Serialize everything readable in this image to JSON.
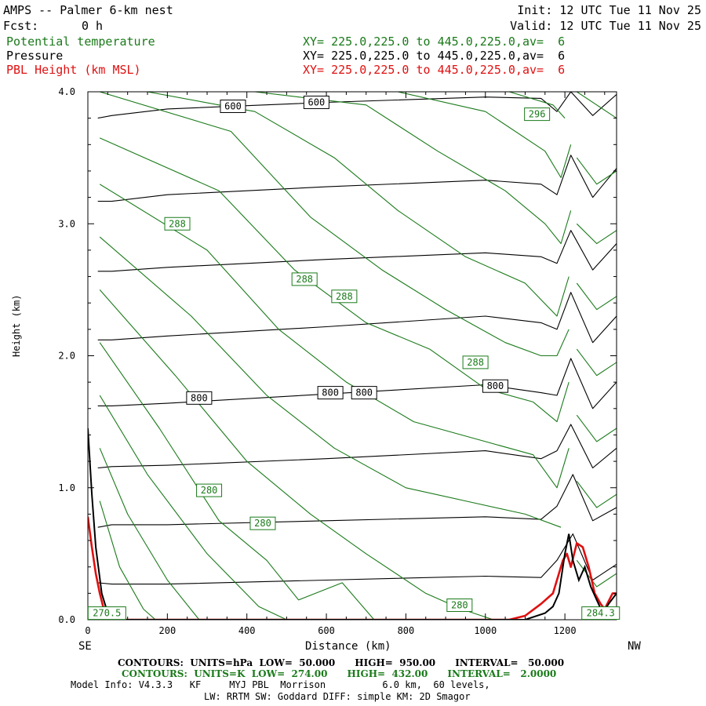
{
  "header": {
    "title": "AMPS -- Palmer 6-km nest",
    "fcst_label": "Fcst:",
    "fcst_value": "0 h",
    "init": "Init: 12 UTC Tue 11 Nov 25",
    "valid": "Valid: 12 UTC Tue 11 Nov 25"
  },
  "fields": [
    {
      "name": "Potential temperature",
      "xy": "XY= 225.0,225.0 to 445.0,225.0,av=  6",
      "color": "#1a7a1a"
    },
    {
      "name": "Pressure",
      "xy": "XY= 225.0,225.0 to 445.0,225.0,av=  6",
      "color": "#000000"
    },
    {
      "name": "PBL Height (km MSL)",
      "xy": "XY= 225.0,225.0 to 445.0,225.0,av=  6",
      "color": "#e01010"
    }
  ],
  "footer": {
    "left_dir": "SE",
    "right_dir": "NW",
    "contours_pressure": "CONTOURS:  UNITS=hPa  LOW=  50.000      HIGH=  950.00      INTERVAL=   50.000",
    "contours_theta": "CONTOURS:  UNITS=K  LOW=  274.00      HIGH=  432.00      INTERVAL=   2.0000",
    "model_info_1": "Model Info: V4.3.3   KF     MYJ PBL  Morrison          6.0 km,  60 levels,",
    "model_info_2": "LW: RRTM SW: Goddard DIFF: simple KM: 2D Smagor"
  },
  "chart_data": {
    "type": "line",
    "xlabel": "Distance (km)",
    "ylabel": "Height (km)",
    "xlim": [
      0,
      1330
    ],
    "ylim": [
      0,
      4
    ],
    "x_ticks": [
      0,
      200,
      400,
      600,
      800,
      1000,
      1200
    ],
    "x_tick_labels": [
      "0",
      "200",
      "400",
      "600",
      "800",
      "1000",
      "1200"
    ],
    "y_ticks": [
      0,
      1,
      2,
      3,
      4
    ],
    "y_tick_labels": [
      "0.0",
      "1.0",
      "2.0",
      "3.0",
      "4.0"
    ],
    "contour_labels": [
      {
        "text": "600",
        "x": 365,
        "y": 3.89,
        "color": "#000000"
      },
      {
        "text": "600",
        "x": 575,
        "y": 3.92,
        "color": "#000000"
      },
      {
        "text": "296",
        "x": 1130,
        "y": 3.83,
        "color": "#1a7a1a"
      },
      {
        "text": "288",
        "x": 225,
        "y": 3.0,
        "color": "#1a7a1a"
      },
      {
        "text": "288",
        "x": 545,
        "y": 2.58,
        "color": "#1a7a1a"
      },
      {
        "text": "288",
        "x": 645,
        "y": 2.45,
        "color": "#1a7a1a"
      },
      {
        "text": "288",
        "x": 975,
        "y": 1.95,
        "color": "#1a7a1a"
      },
      {
        "text": "800",
        "x": 280,
        "y": 1.68,
        "color": "#000000"
      },
      {
        "text": "800",
        "x": 610,
        "y": 1.72,
        "color": "#000000"
      },
      {
        "text": "800",
        "x": 695,
        "y": 1.72,
        "color": "#000000"
      },
      {
        "text": "800",
        "x": 1025,
        "y": 1.77,
        "color": "#000000"
      },
      {
        "text": "280",
        "x": 305,
        "y": 0.98,
        "color": "#1a7a1a"
      },
      {
        "text": "280",
        "x": 440,
        "y": 0.73,
        "color": "#1a7a1a"
      },
      {
        "text": "280",
        "x": 935,
        "y": 0.11,
        "color": "#1a7a1a"
      },
      {
        "text": "270.5",
        "x": 48,
        "y": 0.05,
        "color": "#1a7a1a"
      },
      {
        "text": "284.3",
        "x": 1290,
        "y": 0.05,
        "color": "#1a7a1a"
      }
    ],
    "series": [
      {
        "name": "Pressure",
        "color": "#000000",
        "isolines": [
          [
            [
              25,
              0.28
            ],
            [
              60,
              0.27
            ],
            [
              200,
              0.27
            ],
            [
              600,
              0.3
            ],
            [
              1000,
              0.33
            ],
            [
              1140,
              0.32
            ],
            [
              1180,
              0.45
            ],
            [
              1220,
              0.65
            ],
            [
              1270,
              0.3
            ],
            [
              1330,
              0.42
            ]
          ],
          [
            [
              25,
              0.7
            ],
            [
              60,
              0.72
            ],
            [
              200,
              0.72
            ],
            [
              600,
              0.75
            ],
            [
              1000,
              0.78
            ],
            [
              1140,
              0.76
            ],
            [
              1180,
              0.86
            ],
            [
              1220,
              1.1
            ],
            [
              1270,
              0.75
            ],
            [
              1330,
              0.85
            ]
          ],
          [
            [
              25,
              1.15
            ],
            [
              60,
              1.16
            ],
            [
              200,
              1.17
            ],
            [
              600,
              1.22
            ],
            [
              1000,
              1.28
            ],
            [
              1140,
              1.22
            ],
            [
              1180,
              1.28
            ],
            [
              1215,
              1.48
            ],
            [
              1270,
              1.15
            ],
            [
              1330,
              1.3
            ]
          ],
          [
            [
              25,
              1.62
            ],
            [
              60,
              1.62
            ],
            [
              200,
              1.64
            ],
            [
              600,
              1.71
            ],
            [
              1000,
              1.78
            ],
            [
              1140,
              1.72
            ],
            [
              1180,
              1.7
            ],
            [
              1215,
              1.98
            ],
            [
              1270,
              1.6
            ],
            [
              1330,
              1.8
            ]
          ],
          [
            [
              25,
              2.12
            ],
            [
              60,
              2.12
            ],
            [
              200,
              2.15
            ],
            [
              600,
              2.22
            ],
            [
              1000,
              2.3
            ],
            [
              1140,
              2.25
            ],
            [
              1180,
              2.2
            ],
            [
              1215,
              2.48
            ],
            [
              1270,
              2.1
            ],
            [
              1330,
              2.3
            ]
          ],
          [
            [
              25,
              2.64
            ],
            [
              60,
              2.64
            ],
            [
              200,
              2.67
            ],
            [
              600,
              2.73
            ],
            [
              1000,
              2.78
            ],
            [
              1140,
              2.75
            ],
            [
              1180,
              2.7
            ],
            [
              1215,
              2.95
            ],
            [
              1270,
              2.65
            ],
            [
              1330,
              2.85
            ]
          ],
          [
            [
              25,
              3.17
            ],
            [
              60,
              3.17
            ],
            [
              200,
              3.22
            ],
            [
              600,
              3.28
            ],
            [
              1000,
              3.33
            ],
            [
              1140,
              3.3
            ],
            [
              1180,
              3.22
            ],
            [
              1215,
              3.52
            ],
            [
              1270,
              3.2
            ],
            [
              1330,
              3.42
            ]
          ],
          [
            [
              25,
              3.8
            ],
            [
              60,
              3.82
            ],
            [
              200,
              3.87
            ],
            [
              600,
              3.92
            ],
            [
              1000,
              3.96
            ],
            [
              1140,
              3.95
            ],
            [
              1180,
              3.85
            ],
            [
              1215,
              4.0
            ],
            [
              1270,
              3.82
            ],
            [
              1330,
              3.98
            ]
          ]
        ]
      },
      {
        "name": "Potential temperature",
        "color": "#1a7a1a",
        "isolines": [
          [
            [
              30,
              0.9
            ],
            [
              80,
              0.4
            ],
            [
              140,
              0.08
            ],
            [
              170,
              0.0
            ]
          ],
          [
            [
              30,
              1.3
            ],
            [
              100,
              0.8
            ],
            [
              200,
              0.3
            ],
            [
              280,
              0.0
            ]
          ],
          [
            [
              30,
              1.7
            ],
            [
              150,
              1.1
            ],
            [
              300,
              0.5
            ],
            [
              430,
              0.1
            ],
            [
              500,
              0.0
            ]
          ],
          [
            [
              30,
              2.1
            ],
            [
              180,
              1.45
            ],
            [
              330,
              0.75
            ],
            [
              450,
              0.45
            ],
            [
              530,
              0.15
            ],
            [
              640,
              0.28
            ],
            [
              720,
              0.0
            ]
          ],
          [
            [
              30,
              2.5
            ],
            [
              220,
              1.85
            ],
            [
              400,
              1.2
            ],
            [
              560,
              0.8
            ],
            [
              700,
              0.5
            ],
            [
              850,
              0.2
            ],
            [
              940,
              0.08
            ],
            [
              1020,
              0.0
            ]
          ],
          [
            [
              30,
              2.9
            ],
            [
              260,
              2.3
            ],
            [
              450,
              1.7
            ],
            [
              620,
              1.3
            ],
            [
              800,
              1.0
            ],
            [
              950,
              0.9
            ],
            [
              1100,
              0.8
            ],
            [
              1190,
              0.7
            ]
          ],
          [
            [
              30,
              3.3
            ],
            [
              300,
              2.8
            ],
            [
              480,
              2.2
            ],
            [
              650,
              1.8
            ],
            [
              820,
              1.5
            ],
            [
              1000,
              1.35
            ],
            [
              1120,
              1.25
            ],
            [
              1180,
              1.0
            ],
            [
              1210,
              1.3
            ]
          ],
          [
            [
              30,
              3.65
            ],
            [
              330,
              3.25
            ],
            [
              520,
              2.65
            ],
            [
              700,
              2.25
            ],
            [
              860,
              2.05
            ],
            [
              1000,
              1.75
            ],
            [
              1120,
              1.65
            ],
            [
              1180,
              1.5
            ],
            [
              1210,
              1.8
            ]
          ],
          [
            [
              30,
              4.0
            ],
            [
              360,
              3.7
            ],
            [
              560,
              3.05
            ],
            [
              740,
              2.65
            ],
            [
              900,
              2.35
            ],
            [
              1050,
              2.1
            ],
            [
              1140,
              2.0
            ],
            [
              1180,
              2.0
            ],
            [
              1210,
              2.2
            ]
          ],
          [
            [
              150,
              4.0
            ],
            [
              420,
              3.85
            ],
            [
              620,
              3.5
            ],
            [
              780,
              3.1
            ],
            [
              950,
              2.75
            ],
            [
              1100,
              2.55
            ],
            [
              1180,
              2.3
            ],
            [
              1210,
              2.6
            ]
          ],
          [
            [
              420,
              4.0
            ],
            [
              700,
              3.9
            ],
            [
              880,
              3.55
            ],
            [
              1050,
              3.25
            ],
            [
              1150,
              3.0
            ],
            [
              1190,
              2.85
            ],
            [
              1215,
              3.1
            ]
          ],
          [
            [
              780,
              4.0
            ],
            [
              1000,
              3.85
            ],
            [
              1150,
              3.55
            ],
            [
              1190,
              3.35
            ],
            [
              1215,
              3.6
            ]
          ],
          [
            [
              1060,
              4.0
            ],
            [
              1170,
              3.9
            ],
            [
              1200,
              3.8
            ]
          ],
          [
            [
              1230,
              4.0
            ],
            [
              1280,
              3.9
            ],
            [
              1330,
              3.8
            ]
          ],
          [
            [
              1230,
              3.5
            ],
            [
              1280,
              3.3
            ],
            [
              1330,
              3.4
            ]
          ],
          [
            [
              1230,
              3.0
            ],
            [
              1280,
              2.85
            ],
            [
              1330,
              2.95
            ]
          ],
          [
            [
              1230,
              2.55
            ],
            [
              1280,
              2.35
            ],
            [
              1330,
              2.45
            ]
          ],
          [
            [
              1230,
              2.05
            ],
            [
              1280,
              1.85
            ],
            [
              1330,
              1.95
            ]
          ],
          [
            [
              1230,
              1.55
            ],
            [
              1280,
              1.35
            ],
            [
              1330,
              1.45
            ]
          ],
          [
            [
              1230,
              1.05
            ],
            [
              1280,
              0.85
            ],
            [
              1330,
              0.95
            ]
          ],
          [
            [
              1230,
              0.45
            ],
            [
              1280,
              0.25
            ],
            [
              1330,
              0.35
            ]
          ]
        ]
      },
      {
        "name": "PBL Height (km MSL)",
        "color": "#e01010",
        "isolines": [
          [
            [
              0,
              0.78
            ],
            [
              10,
              0.55
            ],
            [
              20,
              0.35
            ],
            [
              30,
              0.2
            ],
            [
              40,
              0.08
            ],
            [
              50,
              0.03
            ],
            [
              60,
              0.0
            ],
            [
              1060,
              0.0
            ],
            [
              1100,
              0.03
            ],
            [
              1140,
              0.12
            ],
            [
              1170,
              0.2
            ],
            [
              1180,
              0.3
            ],
            [
              1195,
              0.45
            ],
            [
              1205,
              0.5
            ],
            [
              1215,
              0.4
            ],
            [
              1230,
              0.58
            ],
            [
              1245,
              0.55
            ],
            [
              1260,
              0.4
            ],
            [
              1275,
              0.2
            ],
            [
              1290,
              0.12
            ],
            [
              1300,
              0.08
            ],
            [
              1320,
              0.2
            ],
            [
              1330,
              0.2
            ]
          ]
        ]
      }
    ],
    "pbl_terrain_line": {
      "name": "Terrain",
      "color": "#000000",
      "points": [
        [
          0,
          1.45
        ],
        [
          10,
          0.95
        ],
        [
          20,
          0.55
        ],
        [
          35,
          0.2
        ],
        [
          50,
          0.05
        ],
        [
          60,
          0.0
        ],
        [
          1100,
          0.0
        ],
        [
          1150,
          0.05
        ],
        [
          1170,
          0.1
        ],
        [
          1185,
          0.2
        ],
        [
          1200,
          0.5
        ],
        [
          1210,
          0.65
        ],
        [
          1220,
          0.45
        ],
        [
          1235,
          0.3
        ],
        [
          1250,
          0.4
        ],
        [
          1265,
          0.25
        ],
        [
          1280,
          0.15
        ],
        [
          1295,
          0.05
        ],
        [
          1310,
          0.12
        ],
        [
          1330,
          0.2
        ]
      ]
    }
  }
}
